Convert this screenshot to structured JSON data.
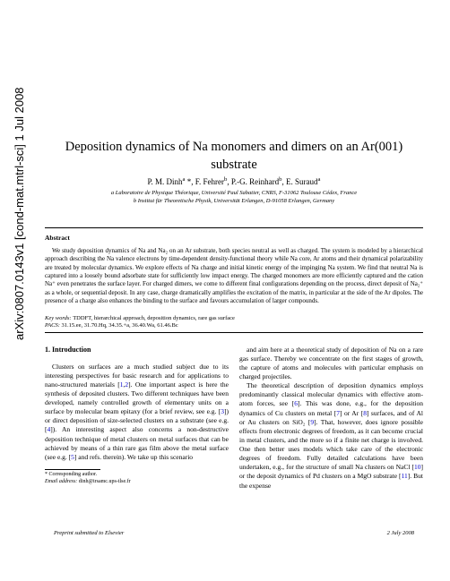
{
  "arxiv": "arXiv:0807.0143v1  [cond-mat.mtrl-sci]  1 Jul 2008",
  "title_line1": "Deposition dynamics of Na monomers and dimers on an Ar(001)",
  "title_line2": "substrate",
  "authors": "P. M. Dinh a *, F. Fehrer b, P.-G. Reinhard b, E. Suraud a",
  "affil_a": "a Laboratoire de Physique Théorique, Université Paul Sabatier, CNRS, F-31062 Toulouse Cédex, France",
  "affil_b": "b Institut für Theoretische Physik, Universität Erlangen, D-91058 Erlangen, Germany",
  "abstract_label": "Abstract",
  "abstract_text": "We study deposition dynamics of Na and Na₂ on an Ar substrate, both species neutral as well as charged. The system is modeled by a hierarchical approach describing the Na valence electrons by time-dependent density-functional theory while Na core, Ar atoms and their dynamical polarizability are treated by molecular dynamics. We explore effects of Na charge and initial kinetic energy of the impinging Na system. We find that neutral Na is captured into a loosely bound adsorbate state for sufficiently low impact energy. The charged monomers are more efficiently captured and the cation Na⁺ even penetrates the surface layer. For charged dimers, we come to different final configurations depending on the process, direct deposit of Na₂⁺ as a whole, or sequential deposit. In any case, charge dramatically amplifies the excitation of the matrix, in particular at the side of the Ar dipoles. The presence of a charge also enhances the binding to the surface and favours accumulation of larger compounds.",
  "keywords_label": "Key words:",
  "keywords_text": "TDDFT, hierarchical approach, deposition dynamics, rare gas surface",
  "pacs_label": "PACS:",
  "pacs_text": "31.15.ee, 31.70.Hq, 34.35.+a, 36.40.Wa, 61.46.Bc",
  "section1": "1.  Introduction",
  "col1_p1a": "Clusters on surfaces are a much studied subject due to its interesting perspectives for basic research and for applications to nano-structured materials [",
  "ref1": "1",
  "ref2": "2",
  "col1_p1b": "]. One important aspect is here the synthesis of deposited clusters. Two different techniques have been developed, namely controlled growth of elementary units on a surface by molecular beam epitaxy (for a brief review, see e.g. [",
  "ref3": "3",
  "col1_p1c": "]) or direct deposition of size-selected clusters on a substrate (see e.g. [",
  "ref4": "4",
  "col1_p1d": "]). An interesting aspect also concerns a non-destructive deposition technique of metal clusters on metal surfaces that can be achieved by means of a thin rare gas film above the metal surface (see e.g. [",
  "ref5": "5",
  "col1_p1e": "] and refs. therein). We take up this scenario",
  "footnote_star": "* Corresponding author.",
  "footnote_email_label": "Email address:",
  "footnote_email": "dinh@irsamc.ups-tlse.fr",
  "col2_p1": "and aim here at a theoretical study of deposition of Na on a rare gas surface. Thereby we concentrate on the first stages of growth, the capture of atoms and molecules with particular emphasis on charged projectiles.",
  "col2_p2a": "The theoretical description of deposition dynamics employs predominantly classical molecular dynamics with effective atom-atom forces, see [",
  "ref6": "6",
  "col2_p2b": "]. This was done, e.g., for the deposition dynamics of Cu clusters on metal [",
  "ref7": "7",
  "col2_p2c": "] or Ar [",
  "ref8": "8",
  "col2_p2d": "] surfaces, and of Al or Au clusters on SiO₂ [",
  "ref9": "9",
  "col2_p2e": "]. That, however, does ignore possible effects from electronic degrees of freedom, as it can become crucial in metal clusters, and the more so if a finite net charge is involved. One then better uses models which take care of the electronic degrees of freedom. Fully detailed calculations have been undertaken, e.g., for the structure of small Na clusters on NaCl [",
  "ref10": "10",
  "col2_p2f": "] or the deposit dynamics of Pd clusters on a MgO substrate [",
  "ref11": "11",
  "col2_p2g": "]. But the expense",
  "footer_left": "Preprint submitted to Elsevier",
  "footer_right": "2 July 2008"
}
